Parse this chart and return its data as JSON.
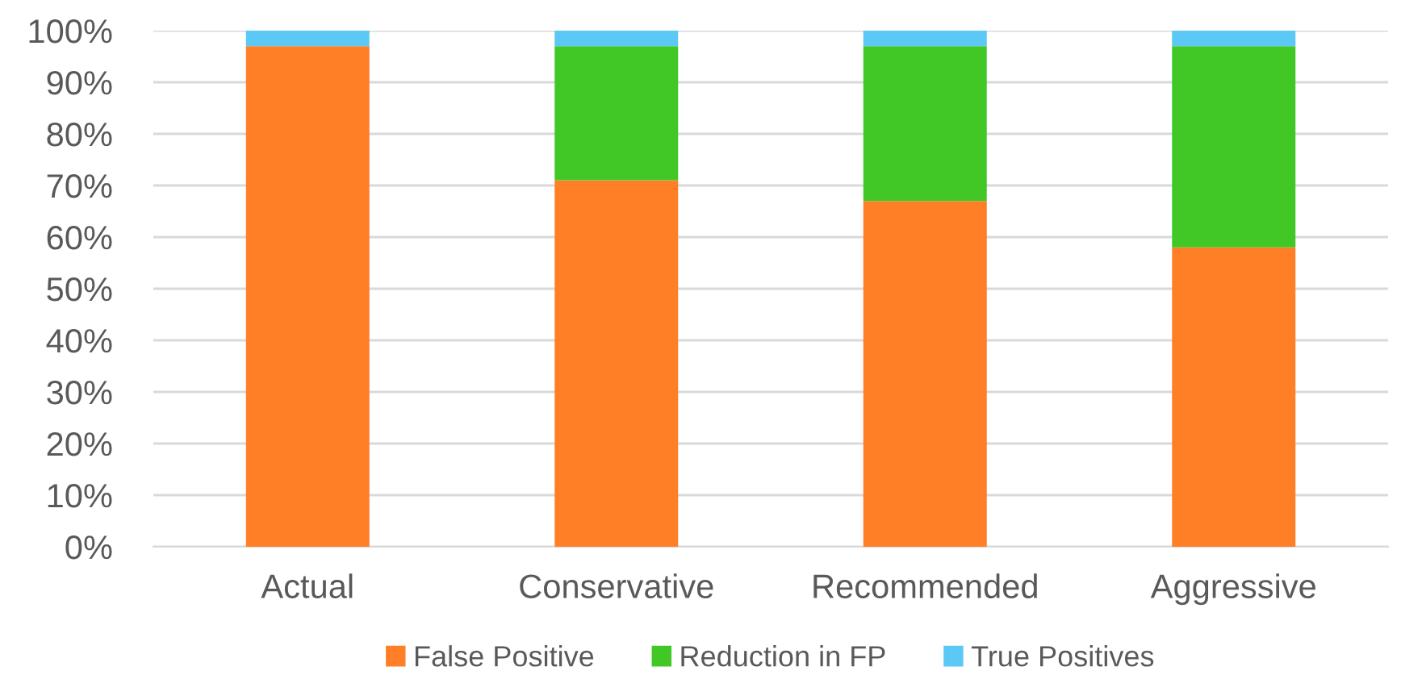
{
  "chart_data": {
    "type": "bar",
    "stacked": true,
    "categories": [
      "Actual",
      "Conservative",
      "Recommended",
      "Aggressive"
    ],
    "series": [
      {
        "name": "False Positive",
        "color": "#ff7f27",
        "values": [
          97,
          71,
          67,
          58
        ]
      },
      {
        "name": "Reduction in FP",
        "color": "#42c826",
        "values": [
          0,
          26,
          30,
          39
        ]
      },
      {
        "name": "True Positives",
        "color": "#5bc8f5",
        "values": [
          3,
          3,
          3,
          3
        ]
      }
    ],
    "ylim": [
      0,
      100
    ],
    "yticks": [
      {
        "value": 0,
        "label": "0%"
      },
      {
        "value": 10,
        "label": "10%"
      },
      {
        "value": 20,
        "label": "20%"
      },
      {
        "value": 30,
        "label": "30%"
      },
      {
        "value": 40,
        "label": "40%"
      },
      {
        "value": 50,
        "label": "50%"
      },
      {
        "value": 60,
        "label": "60%"
      },
      {
        "value": 70,
        "label": "70%"
      },
      {
        "value": 80,
        "label": "80%"
      },
      {
        "value": 90,
        "label": "90%"
      },
      {
        "value": 100,
        "label": "100%"
      }
    ],
    "grid": "y",
    "legend": "bottom"
  }
}
